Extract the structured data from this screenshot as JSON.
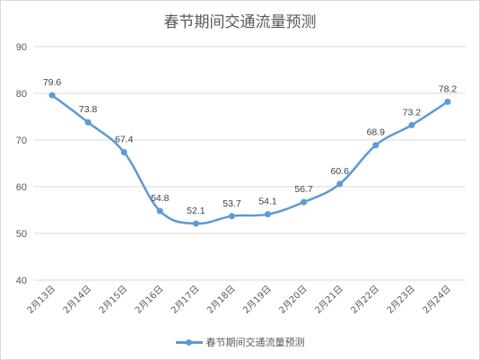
{
  "chart_data": {
    "type": "line",
    "title": "春节期间交通流量预测",
    "categories": [
      "2月13日",
      "2月14日",
      "2月15日",
      "2月16日",
      "2月17日",
      "2月18日",
      "2月19日",
      "2月20日",
      "2月21日",
      "2月22日",
      "2月23日",
      "2月24日"
    ],
    "series": [
      {
        "name": "春节期间交通流量预测",
        "values": [
          79.6,
          73.8,
          67.4,
          54.8,
          52.1,
          53.7,
          54.1,
          56.7,
          60.6,
          68.9,
          73.2,
          78.2
        ],
        "color": "#5b9bd5",
        "smooth": true,
        "markers": true,
        "data_labels": true
      }
    ],
    "ylim": [
      40,
      90
    ],
    "yticks": [
      40,
      50,
      60,
      70,
      80,
      90
    ],
    "grid": true,
    "legend_position": "bottom",
    "gridline_color": "#d9d9d9"
  }
}
